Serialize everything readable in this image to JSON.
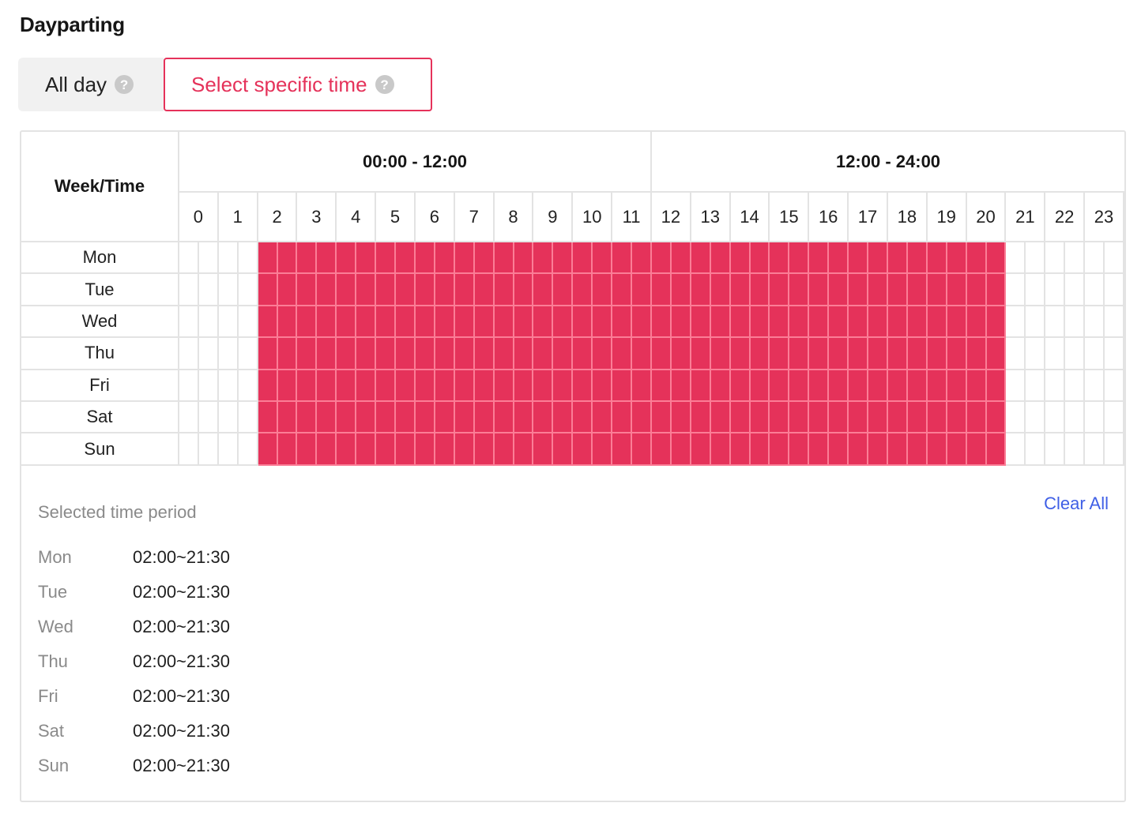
{
  "section_title": "Dayparting",
  "mode_toggle": {
    "all_day_label": "All day",
    "specific_label": "Select specific time",
    "help_glyph": "?",
    "selected": "specific"
  },
  "grid": {
    "week_time_header": "Week/Time",
    "half_headers": [
      "00:00 - 12:00",
      "12:00 - 24:00"
    ],
    "hours": [
      "0",
      "1",
      "2",
      "3",
      "4",
      "5",
      "6",
      "7",
      "8",
      "9",
      "10",
      "11",
      "12",
      "13",
      "14",
      "15",
      "16",
      "17",
      "18",
      "19",
      "20",
      "21",
      "22",
      "23"
    ],
    "days": [
      "Mon",
      "Tue",
      "Wed",
      "Thu",
      "Fri",
      "Sat",
      "Sun"
    ],
    "slots_per_hour": 2,
    "selected_slots": {
      "Mon": {
        "from_slot": 4,
        "to_slot": 42
      },
      "Tue": {
        "from_slot": 4,
        "to_slot": 42
      },
      "Wed": {
        "from_slot": 4,
        "to_slot": 42
      },
      "Thu": {
        "from_slot": 4,
        "to_slot": 42
      },
      "Fri": {
        "from_slot": 4,
        "to_slot": 42
      },
      "Sat": {
        "from_slot": 4,
        "to_slot": 42
      },
      "Sun": {
        "from_slot": 4,
        "to_slot": 42
      }
    },
    "selected_color": "#e5325a"
  },
  "summary": {
    "title": "Selected time period",
    "clear_all_label": "Clear All",
    "rows": [
      {
        "day": "Mon",
        "range": "02:00~21:30"
      },
      {
        "day": "Tue",
        "range": "02:00~21:30"
      },
      {
        "day": "Wed",
        "range": "02:00~21:30"
      },
      {
        "day": "Thu",
        "range": "02:00~21:30"
      },
      {
        "day": "Fri",
        "range": "02:00~21:30"
      },
      {
        "day": "Sat",
        "range": "02:00~21:30"
      },
      {
        "day": "Sun",
        "range": "02:00~21:30"
      }
    ]
  },
  "colors": {
    "accent": "#e5325a",
    "link": "#3f5fe6",
    "muted_text": "#8a8a8a",
    "grid_line": "#e3e3e3"
  }
}
